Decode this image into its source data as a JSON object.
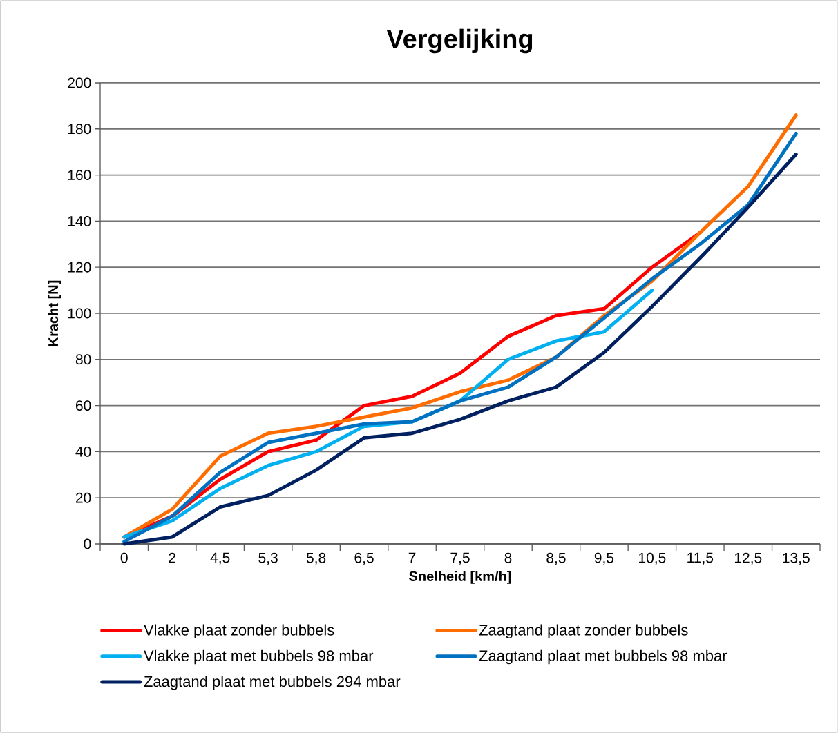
{
  "chart_data": {
    "type": "line",
    "title": "Vergelijking",
    "xlabel": "Snelheid [km/h]",
    "ylabel": "Kracht [N]",
    "categories": [
      "0",
      "2",
      "4,5",
      "5,3",
      "5,8",
      "6,5",
      "7",
      "7,5",
      "8",
      "8,5",
      "9,5",
      "10,5",
      "11,5",
      "12,5",
      "13,5"
    ],
    "series": [
      {
        "name": "Vlakke plaat zonder bubbels",
        "color": "#ff0000",
        "values": [
          3,
          12,
          28,
          40,
          45,
          60,
          64,
          74,
          90,
          99,
          102,
          120,
          135,
          null,
          null
        ]
      },
      {
        "name": "Zaagtand plaat zonder bubbels",
        "color": "#ff6d00",
        "values": [
          3,
          15,
          38,
          48,
          51,
          55,
          59,
          66,
          71,
          81,
          99,
          114,
          135,
          155,
          186
        ]
      },
      {
        "name": "Vlakke plaat met bubbels 98 mbar",
        "color": "#00b0f0",
        "values": [
          3,
          10,
          24,
          34,
          40,
          51,
          53,
          62,
          80,
          88,
          92,
          110,
          null,
          null,
          null
        ]
      },
      {
        "name": "Zaagtand plaat met bubbels 98 mbar",
        "color": "#0070c0",
        "values": [
          1,
          12,
          31,
          44,
          48,
          52,
          53,
          62,
          68,
          81,
          98,
          115,
          130,
          147,
          178
        ]
      },
      {
        "name": "Zaagtand plaat met bubbels 294 mbar",
        "color": "#002060",
        "values": [
          0,
          3,
          16,
          21,
          32,
          46,
          48,
          54,
          62,
          68,
          83,
          103,
          124,
          146,
          169
        ]
      }
    ],
    "ylim": [
      0,
      200
    ],
    "yticks": [
      0,
      20,
      40,
      60,
      80,
      100,
      120,
      140,
      160,
      180,
      200
    ],
    "grid": "y",
    "legend": "bottom",
    "line_style": "solid",
    "marker": "none"
  }
}
